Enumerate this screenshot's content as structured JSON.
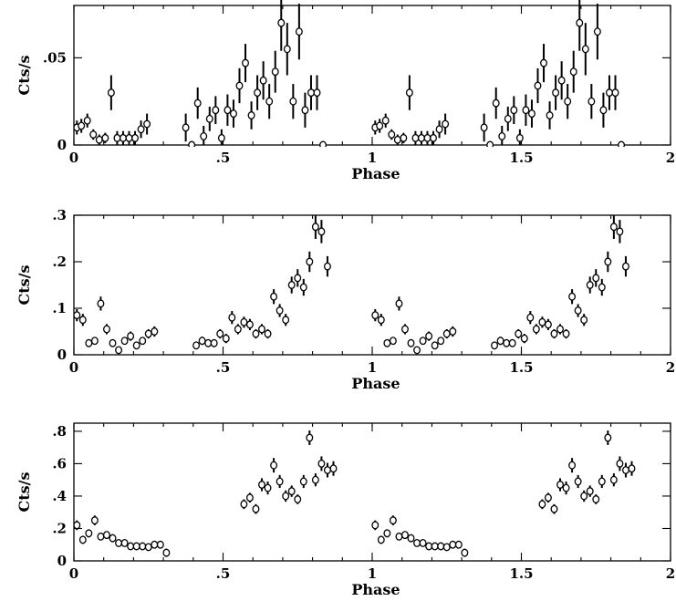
{
  "chart_data": [
    {
      "type": "scatter",
      "xlabel": "Phase",
      "ylabel": "Cts/s",
      "xlim": [
        0,
        2
      ],
      "ylim": [
        0,
        0.08
      ],
      "xticks": [
        0,
        0.5,
        1,
        1.5,
        2
      ],
      "xtick_labels": [
        "0",
        ".5",
        "1",
        "1.5",
        "2"
      ],
      "yticks": [
        0,
        0.05
      ],
      "ytick_labels": [
        "0",
        ".05"
      ],
      "points": [
        {
          "x": 0.01,
          "y": 0.01,
          "e": 0.004
        },
        {
          "x": 0.025,
          "y": 0.011,
          "e": 0.004
        },
        {
          "x": 0.045,
          "y": 0.014,
          "e": 0.004
        },
        {
          "x": 0.065,
          "y": 0.006,
          "e": 0.003
        },
        {
          "x": 0.085,
          "y": 0.003,
          "e": 0.003
        },
        {
          "x": 0.105,
          "y": 0.004,
          "e": 0.003
        },
        {
          "x": 0.125,
          "y": 0.03,
          "e": 0.01
        },
        {
          "x": 0.145,
          "y": 0.004,
          "e": 0.004
        },
        {
          "x": 0.165,
          "y": 0.004,
          "e": 0.004
        },
        {
          "x": 0.185,
          "y": 0.004,
          "e": 0.004
        },
        {
          "x": 0.205,
          "y": 0.004,
          "e": 0.004
        },
        {
          "x": 0.225,
          "y": 0.009,
          "e": 0.005
        },
        {
          "x": 0.245,
          "y": 0.012,
          "e": 0.006
        },
        {
          "x": 0.375,
          "y": 0.01,
          "e": 0.008
        },
        {
          "x": 0.395,
          "y": 0.0,
          "e": 0.0
        },
        {
          "x": 0.415,
          "y": 0.024,
          "e": 0.009
        },
        {
          "x": 0.435,
          "y": 0.005,
          "e": 0.006
        },
        {
          "x": 0.455,
          "y": 0.015,
          "e": 0.007
        },
        {
          "x": 0.475,
          "y": 0.02,
          "e": 0.008
        },
        {
          "x": 0.495,
          "y": 0.004,
          "e": 0.005
        },
        {
          "x": 0.515,
          "y": 0.02,
          "e": 0.009
        },
        {
          "x": 0.535,
          "y": 0.018,
          "e": 0.008
        },
        {
          "x": 0.555,
          "y": 0.034,
          "e": 0.01
        },
        {
          "x": 0.575,
          "y": 0.047,
          "e": 0.011
        },
        {
          "x": 0.595,
          "y": 0.017,
          "e": 0.008
        },
        {
          "x": 0.615,
          "y": 0.03,
          "e": 0.01
        },
        {
          "x": 0.635,
          "y": 0.037,
          "e": 0.011
        },
        {
          "x": 0.655,
          "y": 0.025,
          "e": 0.01
        },
        {
          "x": 0.675,
          "y": 0.042,
          "e": 0.012
        },
        {
          "x": 0.695,
          "y": 0.07,
          "e": 0.016
        },
        {
          "x": 0.715,
          "y": 0.055,
          "e": 0.015
        },
        {
          "x": 0.735,
          "y": 0.025,
          "e": 0.01
        },
        {
          "x": 0.755,
          "y": 0.065,
          "e": 0.016
        },
        {
          "x": 0.775,
          "y": 0.02,
          "e": 0.01
        },
        {
          "x": 0.795,
          "y": 0.03,
          "e": 0.01
        },
        {
          "x": 0.815,
          "y": 0.03,
          "e": 0.01
        },
        {
          "x": 0.835,
          "y": 0.0,
          "e": 0.0
        }
      ],
      "repeat_period": 1
    },
    {
      "type": "scatter",
      "xlabel": "Phase",
      "ylabel": "Cts/s",
      "xlim": [
        0,
        2
      ],
      "ylim": [
        0,
        0.3
      ],
      "xticks": [
        0,
        0.5,
        1,
        1.5,
        2
      ],
      "xtick_labels": [
        "0",
        ".5",
        "1",
        "1.5",
        "2"
      ],
      "yticks": [
        0,
        0.1,
        0.2,
        0.3
      ],
      "ytick_labels": [
        "0",
        ".1",
        ".2",
        ".3"
      ],
      "points": [
        {
          "x": 0.01,
          "y": 0.085,
          "e": 0.013
        },
        {
          "x": 0.03,
          "y": 0.075,
          "e": 0.013
        },
        {
          "x": 0.05,
          "y": 0.025,
          "e": 0.008
        },
        {
          "x": 0.07,
          "y": 0.03,
          "e": 0.008
        },
        {
          "x": 0.09,
          "y": 0.11,
          "e": 0.015
        },
        {
          "x": 0.11,
          "y": 0.055,
          "e": 0.011
        },
        {
          "x": 0.13,
          "y": 0.025,
          "e": 0.008
        },
        {
          "x": 0.15,
          "y": 0.01,
          "e": 0.006
        },
        {
          "x": 0.17,
          "y": 0.03,
          "e": 0.008
        },
        {
          "x": 0.19,
          "y": 0.04,
          "e": 0.01
        },
        {
          "x": 0.21,
          "y": 0.02,
          "e": 0.007
        },
        {
          "x": 0.23,
          "y": 0.03,
          "e": 0.008
        },
        {
          "x": 0.25,
          "y": 0.045,
          "e": 0.01
        },
        {
          "x": 0.27,
          "y": 0.05,
          "e": 0.011
        },
        {
          "x": 0.41,
          "y": 0.02,
          "e": 0.008
        },
        {
          "x": 0.43,
          "y": 0.03,
          "e": 0.009
        },
        {
          "x": 0.45,
          "y": 0.025,
          "e": 0.008
        },
        {
          "x": 0.47,
          "y": 0.025,
          "e": 0.008
        },
        {
          "x": 0.49,
          "y": 0.045,
          "e": 0.01
        },
        {
          "x": 0.51,
          "y": 0.035,
          "e": 0.01
        },
        {
          "x": 0.53,
          "y": 0.08,
          "e": 0.014
        },
        {
          "x": 0.55,
          "y": 0.055,
          "e": 0.011
        },
        {
          "x": 0.57,
          "y": 0.07,
          "e": 0.012
        },
        {
          "x": 0.59,
          "y": 0.065,
          "e": 0.012
        },
        {
          "x": 0.61,
          "y": 0.045,
          "e": 0.01
        },
        {
          "x": 0.63,
          "y": 0.055,
          "e": 0.011
        },
        {
          "x": 0.65,
          "y": 0.045,
          "e": 0.01
        },
        {
          "x": 0.67,
          "y": 0.125,
          "e": 0.016
        },
        {
          "x": 0.69,
          "y": 0.095,
          "e": 0.014
        },
        {
          "x": 0.71,
          "y": 0.075,
          "e": 0.013
        },
        {
          "x": 0.73,
          "y": 0.15,
          "e": 0.018
        },
        {
          "x": 0.75,
          "y": 0.165,
          "e": 0.019
        },
        {
          "x": 0.77,
          "y": 0.145,
          "e": 0.018
        },
        {
          "x": 0.79,
          "y": 0.2,
          "e": 0.022
        },
        {
          "x": 0.81,
          "y": 0.275,
          "e": 0.026
        },
        {
          "x": 0.83,
          "y": 0.265,
          "e": 0.025
        },
        {
          "x": 0.85,
          "y": 0.19,
          "e": 0.022
        }
      ],
      "repeat_period": 1
    },
    {
      "type": "scatter",
      "xlabel": "Phase",
      "ylabel": "Cts/s",
      "xlim": [
        0,
        2
      ],
      "ylim": [
        0,
        0.85
      ],
      "xticks": [
        0,
        0.5,
        1,
        1.5,
        2
      ],
      "xtick_labels": [
        "0",
        ".5",
        "1",
        "1.5",
        "2"
      ],
      "yticks": [
        0,
        0.2,
        0.4,
        0.6,
        0.8
      ],
      "ytick_labels": [
        "0",
        ".2",
        ".4",
        ".6",
        ".8"
      ],
      "points": [
        {
          "x": 0.01,
          "y": 0.22,
          "e": 0.03
        },
        {
          "x": 0.03,
          "y": 0.13,
          "e": 0.025
        },
        {
          "x": 0.05,
          "y": 0.17,
          "e": 0.025
        },
        {
          "x": 0.07,
          "y": 0.25,
          "e": 0.03
        },
        {
          "x": 0.09,
          "y": 0.15,
          "e": 0.02
        },
        {
          "x": 0.11,
          "y": 0.16,
          "e": 0.02
        },
        {
          "x": 0.13,
          "y": 0.14,
          "e": 0.02
        },
        {
          "x": 0.15,
          "y": 0.11,
          "e": 0.015
        },
        {
          "x": 0.17,
          "y": 0.11,
          "e": 0.015
        },
        {
          "x": 0.19,
          "y": 0.09,
          "e": 0.015
        },
        {
          "x": 0.21,
          "y": 0.09,
          "e": 0.015
        },
        {
          "x": 0.23,
          "y": 0.09,
          "e": 0.015
        },
        {
          "x": 0.25,
          "y": 0.085,
          "e": 0.015
        },
        {
          "x": 0.27,
          "y": 0.1,
          "e": 0.02
        },
        {
          "x": 0.29,
          "y": 0.1,
          "e": 0.02
        },
        {
          "x": 0.31,
          "y": 0.05,
          "e": 0.025
        },
        {
          "x": 0.57,
          "y": 0.35,
          "e": 0.03
        },
        {
          "x": 0.59,
          "y": 0.39,
          "e": 0.03
        },
        {
          "x": 0.61,
          "y": 0.32,
          "e": 0.03
        },
        {
          "x": 0.63,
          "y": 0.47,
          "e": 0.04
        },
        {
          "x": 0.65,
          "y": 0.45,
          "e": 0.04
        },
        {
          "x": 0.67,
          "y": 0.59,
          "e": 0.045
        },
        {
          "x": 0.69,
          "y": 0.49,
          "e": 0.04
        },
        {
          "x": 0.71,
          "y": 0.4,
          "e": 0.035
        },
        {
          "x": 0.73,
          "y": 0.43,
          "e": 0.035
        },
        {
          "x": 0.75,
          "y": 0.38,
          "e": 0.03
        },
        {
          "x": 0.77,
          "y": 0.49,
          "e": 0.04
        },
        {
          "x": 0.79,
          "y": 0.76,
          "e": 0.045
        },
        {
          "x": 0.81,
          "y": 0.5,
          "e": 0.04
        },
        {
          "x": 0.83,
          "y": 0.6,
          "e": 0.045
        },
        {
          "x": 0.85,
          "y": 0.56,
          "e": 0.045
        },
        {
          "x": 0.87,
          "y": 0.57,
          "e": 0.045
        }
      ],
      "repeat_period": 1
    }
  ]
}
